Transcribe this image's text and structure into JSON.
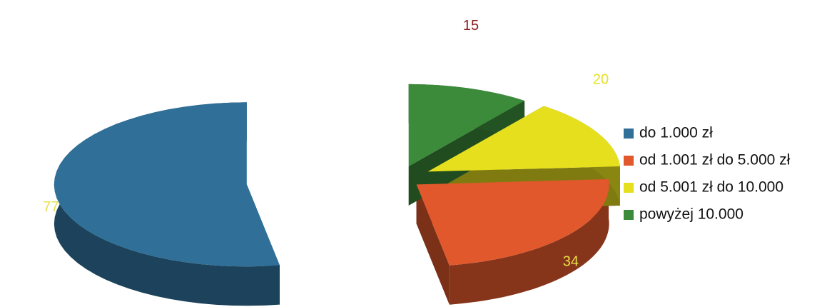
{
  "chart_data": {
    "type": "pie3d",
    "categories": [
      "do 1.000 zł",
      "od 1.001 zł do 5.000 zł",
      "od 5.001 zł do 10.000",
      "powyżej 10.000"
    ],
    "values": [
      77,
      34,
      20,
      15
    ],
    "colors": [
      "#2f6f98",
      "#e0582c",
      "#e6df1e",
      "#3b8b3a"
    ],
    "legend": "right"
  }
}
